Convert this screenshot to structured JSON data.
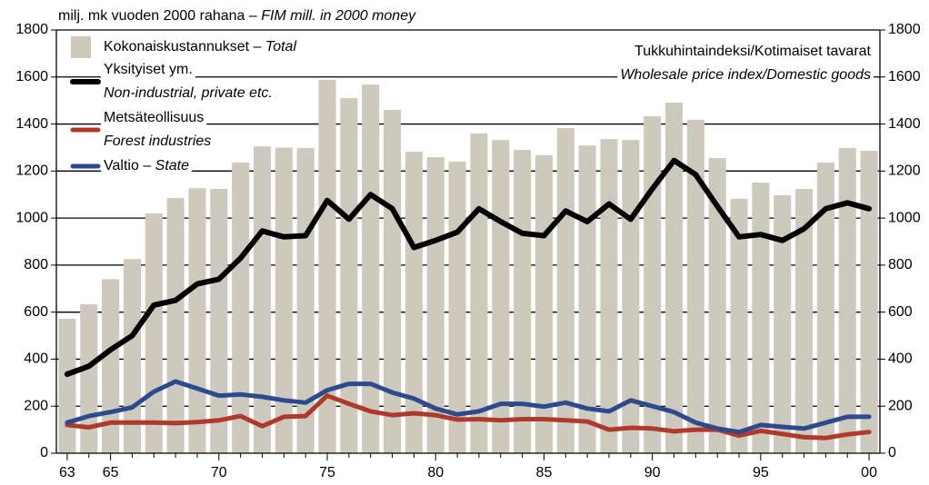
{
  "chart_data": {
    "type": "bar-line",
    "unit_note": "milj. mk vuoden 2000 rahana –",
    "unit_note_en": "FIM mill. in 2000 money",
    "index_note": "Tukkuhintaindeksi/Kotimaiset tavarat",
    "index_note_en": "Wholesale price index/Domestic goods",
    "categories": [
      "63",
      null,
      "65",
      null,
      null,
      null,
      null,
      "70",
      null,
      null,
      null,
      null,
      "75",
      null,
      null,
      null,
      null,
      "80",
      null,
      null,
      null,
      null,
      "85",
      null,
      null,
      null,
      null,
      "90",
      null,
      null,
      null,
      null,
      "95",
      null,
      null,
      null,
      null,
      "00"
    ],
    "series": [
      {
        "name": "Kokonaiskustannukset –",
        "name_en": "Total",
        "type": "bar",
        "color": "#cec9bd",
        "values": [
          572,
          633,
          740,
          826,
          1020,
          1085,
          1127,
          1124,
          1236,
          1305,
          1300,
          1298,
          1588,
          1510,
          1568,
          1460,
          1282,
          1259,
          1240,
          1360,
          1332,
          1290,
          1267,
          1383,
          1309,
          1336,
          1332,
          1433,
          1491,
          1418,
          1255,
          1082,
          1151,
          1097,
          1124,
          1236,
          1298,
          1286
        ]
      },
      {
        "name": "Yksityiset ym.",
        "name_en": "Non-industrial, private etc.",
        "type": "line",
        "color": "#000000",
        "values": [
          336,
          370,
          440,
          500,
          630,
          650,
          720,
          740,
          830,
          945,
          920,
          925,
          1075,
          995,
          1100,
          1040,
          875,
          905,
          940,
          1040,
          985,
          935,
          925,
          1030,
          985,
          1060,
          995,
          1125,
          1245,
          1185,
          1050,
          920,
          930,
          905,
          955,
          1040,
          1065,
          1040
        ]
      },
      {
        "name": "Metsäteollisuus",
        "name_en": "Forest industries",
        "type": "line",
        "color": "#b0392c",
        "values": [
          120,
          110,
          130,
          130,
          130,
          128,
          132,
          140,
          158,
          115,
          155,
          158,
          245,
          210,
          178,
          162,
          170,
          162,
          143,
          145,
          140,
          145,
          145,
          140,
          135,
          100,
          108,
          105,
          93,
          100,
          100,
          75,
          95,
          82,
          68,
          65,
          80,
          90
        ]
      },
      {
        "name": "Valtio –",
        "name_en": "State",
        "type": "line",
        "color": "#2d4a8e",
        "values": [
          130,
          158,
          175,
          195,
          262,
          305,
          275,
          245,
          250,
          240,
          225,
          215,
          268,
          295,
          295,
          258,
          232,
          190,
          165,
          178,
          210,
          210,
          198,
          215,
          190,
          178,
          225,
          200,
          175,
          130,
          105,
          90,
          120,
          112,
          105,
          130,
          155,
          155
        ]
      }
    ],
    "ylim": [
      0,
      1800
    ],
    "yticks": [
      0,
      200,
      400,
      600,
      800,
      1000,
      1200,
      1400,
      1600,
      1800
    ],
    "y2lim": [
      0,
      1800
    ],
    "y2ticks": [
      0,
      200,
      400,
      600,
      800,
      1000,
      1200,
      1400,
      1600,
      1800
    ],
    "grid": true
  }
}
